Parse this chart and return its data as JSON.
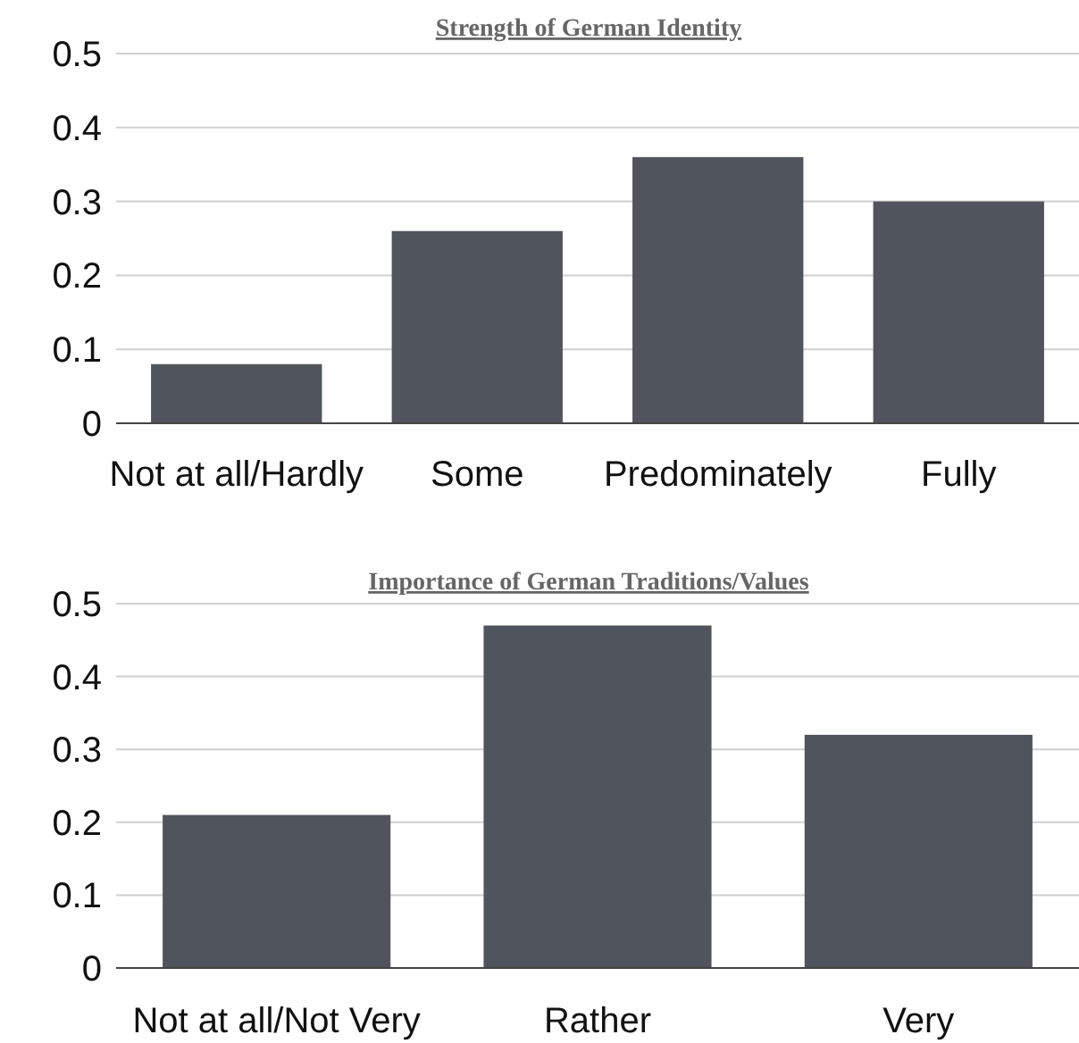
{
  "chart_data": [
    {
      "type": "bar",
      "title": "Strength of German Identity",
      "categories": [
        "Not at all/Hardly",
        "Some",
        "Predominately",
        "Fully"
      ],
      "values": [
        0.08,
        0.26,
        0.36,
        0.3
      ],
      "color": "#50555d",
      "ylim": [
        0,
        0.5
      ],
      "yticks": [
        0,
        0.1,
        0.2,
        0.3,
        0.4,
        0.5
      ],
      "grid": "y"
    },
    {
      "type": "bar",
      "title": "Importance of German Traditions/Values",
      "categories": [
        "Not at all/Not Very",
        "Rather",
        "Very"
      ],
      "values": [
        0.21,
        0.47,
        0.32
      ],
      "color": "#50555d",
      "ylim": [
        0,
        0.5
      ],
      "yticks": [
        0,
        0.1,
        0.2,
        0.3,
        0.4,
        0.5
      ],
      "grid": "y"
    }
  ]
}
